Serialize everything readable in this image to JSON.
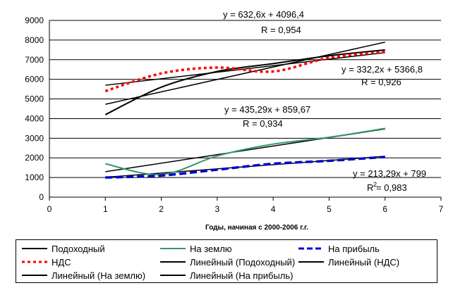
{
  "chart_data": {
    "type": "line",
    "xlabel": "Годы, начиная с 2000-2006 г.г.",
    "ylabel": "",
    "xlim": [
      0,
      7
    ],
    "ylim": [
      0,
      9000
    ],
    "x_ticks": [
      "0",
      "1",
      "2",
      "3",
      "4",
      "5",
      "6",
      "7"
    ],
    "y_ticks": [
      "0",
      "1000",
      "2000",
      "3000",
      "4000",
      "5000",
      "6000",
      "7000",
      "8000",
      "9000"
    ],
    "grid": "horizontal",
    "legend_position": "bottom",
    "series": [
      {
        "name": "Подоходный",
        "color": "#000000",
        "style": "solid",
        "x": [
          1,
          2,
          3,
          4,
          5,
          6
        ],
        "y": [
          4200,
          5600,
          6400,
          6800,
          7200,
          7500
        ]
      },
      {
        "name": "На землю",
        "color": "#339966",
        "style": "solid",
        "x": [
          1,
          2,
          3,
          4,
          5,
          6
        ],
        "y": [
          1700,
          1150,
          2100,
          2700,
          3050,
          3500
        ]
      },
      {
        "name": "На прибыль",
        "color": "#0000cc",
        "style": "dashed",
        "x": [
          1,
          2,
          3,
          4,
          5,
          6
        ],
        "y": [
          1000,
          1100,
          1400,
          1700,
          1850,
          2050
        ]
      },
      {
        "name": "НДС",
        "color": "#ff0000",
        "style": "dotted",
        "x": [
          1,
          2,
          3,
          4,
          5,
          6
        ],
        "y": [
          5400,
          6300,
          6600,
          6400,
          7100,
          7400
        ]
      },
      {
        "name": "Линейный (Подоходный)",
        "color": "#000000",
        "style": "solid",
        "trendline": {
          "slope": 632.6,
          "intercept": 4096.4
        }
      },
      {
        "name": "Линейный (НДС)",
        "color": "#000000",
        "style": "solid",
        "trendline": {
          "slope": 332.2,
          "intercept": 5366.8
        }
      },
      {
        "name": "Линейный (На землю)",
        "color": "#000000",
        "style": "solid",
        "trendline": {
          "slope": 435.29,
          "intercept": 859.67
        }
      },
      {
        "name": "Линейный (На прибыль)",
        "color": "#000000",
        "style": "solid",
        "trendline": {
          "slope": 213.29,
          "intercept": 799
        }
      }
    ],
    "annotations": [
      {
        "eq": "y = 632,6x + 4096,4",
        "r": "R  = 0,954",
        "sup": ""
      },
      {
        "eq": "y = 332,2x + 5366,8",
        "r": "R  = 0,926",
        "sup": ""
      },
      {
        "eq": "y = 435,29x + 859,67",
        "r": "R  = 0,934",
        "sup": ""
      },
      {
        "eq": "y = 213,29x + 799",
        "r": "R  = 0,983",
        "sup": "2"
      }
    ]
  },
  "legend": {
    "items": [
      {
        "label": "Подоходный",
        "color": "#000000",
        "style": "solid"
      },
      {
        "label": "На землю",
        "color": "#339966",
        "style": "solid"
      },
      {
        "label": "На прибыль",
        "color": "#0000cc",
        "style": "dashed"
      },
      {
        "label": "НДС",
        "color": "#ff0000",
        "style": "dotted"
      },
      {
        "label": "Линейный (Подоходный)",
        "color": "#000000",
        "style": "solid"
      },
      {
        "label": "Линейный (НДС)",
        "color": "#000000",
        "style": "solid"
      },
      {
        "label": "Линейный (На землю)",
        "color": "#000000",
        "style": "solid"
      },
      {
        "label": "Линейный (На прибыль)",
        "color": "#000000",
        "style": "solid"
      }
    ]
  }
}
